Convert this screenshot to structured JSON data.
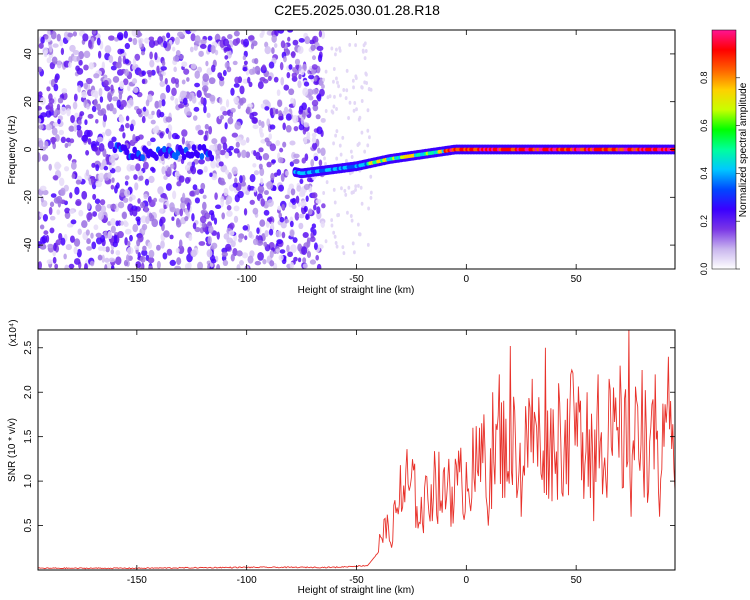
{
  "title": "C2E5.2025.030.01.28.R18",
  "chart_data": [
    {
      "type": "heatmap",
      "xlabel": "Height of straight line (km)",
      "ylabel": "Frequency (Hz)",
      "xlim": [
        -195,
        95
      ],
      "ylim": [
        -50,
        50
      ],
      "x_ticks": [
        -150,
        -100,
        -50,
        0,
        50
      ],
      "y_ticks": [
        -40,
        -20,
        0,
        20,
        40
      ],
      "colorbar": {
        "label": "Normalized spectral amplitude",
        "range": [
          0,
          1
        ],
        "ticks": [
          "0.0",
          "0.2",
          "0.4",
          "0.6",
          "0.8"
        ],
        "colors": [
          "#ffffff",
          "#c9b6ee",
          "#7a36e6",
          "#3a00ff",
          "#0048ff",
          "#00c8ff",
          "#00ff9c",
          "#00ff00",
          "#c8ff00",
          "#ffd000",
          "#ff6000",
          "#ff0000",
          "#ff1493"
        ]
      },
      "features": {
        "noise_region_x": [
          -195,
          -65
        ],
        "noise_freq_range": [
          -50,
          50
        ],
        "signal_track": [
          {
            "x": -155,
            "freq": -2
          },
          {
            "x": -120,
            "freq": -1
          },
          {
            "x": -75,
            "freq": -10
          },
          {
            "x": -50,
            "freq": -7
          },
          {
            "x": -35,
            "freq": -4
          },
          {
            "x": -20,
            "freq": -2
          },
          {
            "x": -5,
            "freq": 0
          },
          {
            "x": 20,
            "freq": 0
          },
          {
            "x": 50,
            "freq": 0
          },
          {
            "x": 95,
            "freq": 0
          }
        ]
      }
    },
    {
      "type": "line",
      "xlabel": "Height of straight line (km)",
      "ylabel": "SNR (10 * v/v)",
      "y_multiplier": "(x10⁴)",
      "xlim": [
        -195,
        95
      ],
      "ylim": [
        0,
        2.7
      ],
      "x_ticks": [
        -150,
        -100,
        -50,
        0,
        50
      ],
      "y_ticks": [
        "0.5",
        "1.0",
        "1.5",
        "2.0",
        "2.5"
      ],
      "series": [
        {
          "color": "#e8312a",
          "x": [
            -195,
            -150,
            -100,
            -60,
            -45,
            -40,
            -38,
            -35,
            -30,
            -25,
            -20,
            -15,
            -10,
            -5,
            0,
            5,
            10,
            15,
            20,
            25,
            30,
            35,
            40,
            45,
            50,
            55,
            60,
            65,
            70,
            75,
            80,
            85,
            90,
            95
          ],
          "y": [
            0.02,
            0.02,
            0.03,
            0.03,
            0.05,
            0.2,
            0.55,
            0.35,
            0.75,
            0.9,
            0.6,
            1.0,
            0.8,
            0.9,
            1.0,
            1.1,
            1.2,
            1.35,
            1.4,
            1.35,
            1.4,
            1.45,
            1.35,
            1.45,
            1.5,
            1.4,
            1.45,
            1.4,
            1.35,
            1.4,
            1.45,
            1.3,
            1.25,
            1.35
          ],
          "peaks": [
            {
              "x": -37,
              "y": 0.58
            },
            {
              "x": -30,
              "y": 1.18
            },
            {
              "x": -27,
              "y": 1.36
            },
            {
              "x": -18,
              "y": 1.05
            },
            {
              "x": -14,
              "y": 1.1
            },
            {
              "x": -8,
              "y": 1.25
            },
            {
              "x": -3,
              "y": 1.1
            },
            {
              "x": 3,
              "y": 1.6
            },
            {
              "x": 8,
              "y": 1.75
            },
            {
              "x": 12,
              "y": 2.0
            },
            {
              "x": 15,
              "y": 2.2
            },
            {
              "x": 20,
              "y": 2.52
            },
            {
              "x": 25,
              "y": 2.0
            },
            {
              "x": 30,
              "y": 2.15
            },
            {
              "x": 36,
              "y": 2.5
            },
            {
              "x": 42,
              "y": 2.1
            },
            {
              "x": 48,
              "y": 2.25
            },
            {
              "x": 55,
              "y": 2.0
            },
            {
              "x": 60,
              "y": 2.2
            },
            {
              "x": 65,
              "y": 2.15
            },
            {
              "x": 70,
              "y": 2.3
            },
            {
              "x": 74,
              "y": 2.72
            },
            {
              "x": 80,
              "y": 2.25
            },
            {
              "x": 86,
              "y": 2.2
            },
            {
              "x": 92,
              "y": 2.4
            }
          ],
          "dips": [
            {
              "x": 10,
              "y": 0.5
            },
            {
              "x": 25,
              "y": 0.6
            },
            {
              "x": 58,
              "y": 0.55
            },
            {
              "x": 75,
              "y": 0.6
            },
            {
              "x": 88,
              "y": 0.6
            }
          ]
        }
      ]
    }
  ]
}
